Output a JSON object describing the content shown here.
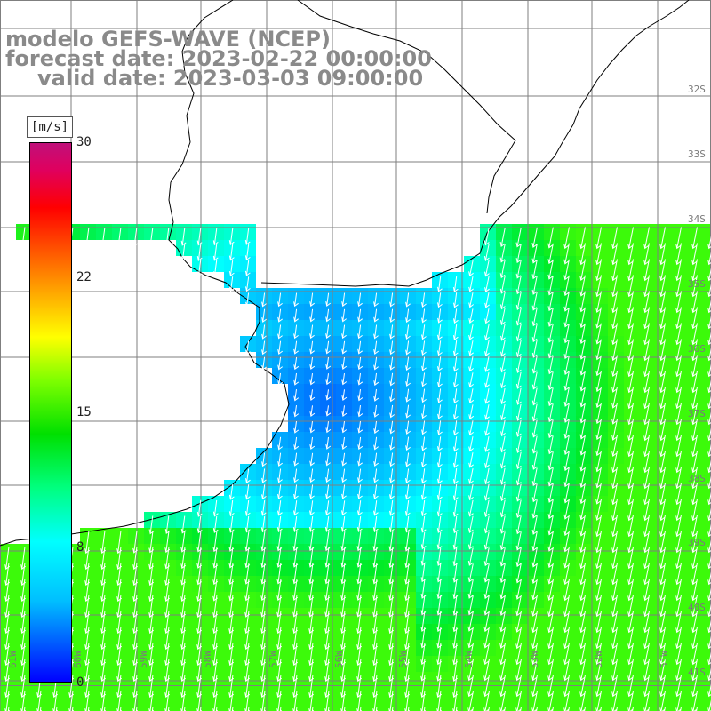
{
  "map": {
    "title_model": "modelo GEFS-WAVE (NCEP)",
    "forecast_date": "forecast date: 2023-02-22 00:00:00",
    "valid_date": "valid date: 2023-03-03 09:00:00",
    "colorbar": {
      "unit": "[m/s]",
      "ticks": [
        "30",
        "22",
        "15",
        "8",
        "0"
      ],
      "tick_values": [
        30,
        22,
        15,
        8,
        0
      ],
      "min": 0,
      "max": 30
    },
    "lat_labels": [
      "32S",
      "33S",
      "34S",
      "35S",
      "36S",
      "37S",
      "38S",
      "39S",
      "40S",
      "41S"
    ],
    "lon_labels": [
      "61W",
      "60W",
      "59W",
      "58W",
      "57W",
      "56W",
      "55W",
      "54W",
      "53W",
      "52W",
      "51W"
    ],
    "colors": {
      "land": "#ffffff",
      "coast": "#000000",
      "grid": "#7f7f7f",
      "title": "#8a8a8a",
      "arrow": "#ffffff"
    },
    "field": {
      "variable": "wind speed",
      "units": "m/s",
      "range_observed": [
        3,
        14
      ]
    }
  }
}
